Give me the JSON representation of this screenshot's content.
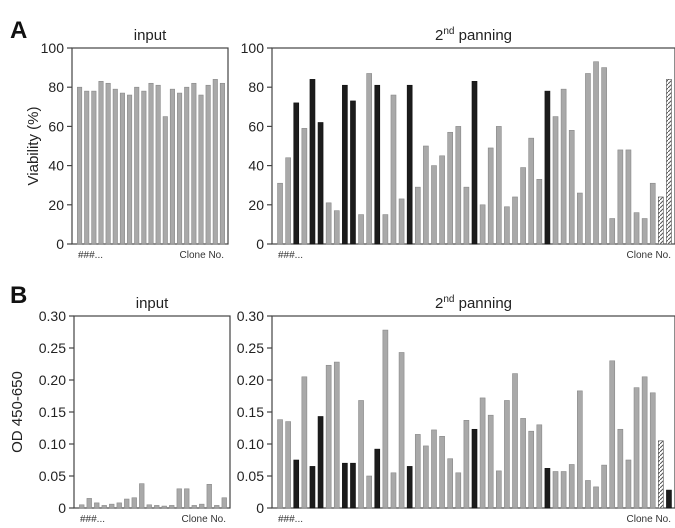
{
  "figure_labels": [
    "A",
    "B"
  ],
  "colors": {
    "gray": "#a9a9a9",
    "dark": "#1c1c1c",
    "hatch": "#555555"
  },
  "chart_data": [
    {
      "id": "A-input",
      "type": "bar",
      "title": "input",
      "ylabel": "Viability (%)",
      "ylim": [
        0,
        100
      ],
      "yticks": [
        "0",
        "20",
        "40",
        "60",
        "80",
        "100"
      ],
      "x_start_label": "###...",
      "x_end_label": "Clone No.",
      "values": [
        80,
        78,
        78,
        83,
        82,
        79,
        77,
        76,
        80,
        78,
        82,
        81,
        65,
        79,
        77,
        80,
        82,
        76,
        81,
        84,
        82
      ],
      "kinds": [
        "g",
        "g",
        "g",
        "g",
        "g",
        "g",
        "g",
        "g",
        "g",
        "g",
        "g",
        "g",
        "g",
        "g",
        "g",
        "g",
        "g",
        "g",
        "g",
        "g",
        "g"
      ]
    },
    {
      "id": "A-panning",
      "type": "bar",
      "title_main": "2",
      "title_sup": "nd",
      "title_rest": " panning",
      "ylim": [
        0,
        100
      ],
      "yticks": [
        "0",
        "20",
        "40",
        "60",
        "80",
        "100"
      ],
      "x_start_label": "###...",
      "x_end_label": "Clone No.",
      "values": [
        31,
        44,
        72,
        59,
        84,
        62,
        21,
        17,
        81,
        73,
        15,
        87,
        81,
        15,
        76,
        23,
        81,
        29,
        50,
        40,
        45,
        57,
        60,
        29,
        83,
        20,
        49,
        60,
        19,
        24,
        39,
        54,
        33,
        78,
        65,
        79,
        58,
        26,
        87,
        93,
        90,
        13,
        48,
        48,
        16,
        13,
        31,
        24,
        84
      ],
      "kinds": [
        "g",
        "g",
        "d",
        "g",
        "d",
        "d",
        "g",
        "g",
        "d",
        "d",
        "g",
        "g",
        "d",
        "g",
        "g",
        "g",
        "d",
        "g",
        "g",
        "g",
        "g",
        "g",
        "g",
        "g",
        "d",
        "g",
        "g",
        "g",
        "g",
        "g",
        "g",
        "g",
        "g",
        "d",
        "g",
        "g",
        "g",
        "g",
        "g",
        "g",
        "g",
        "g",
        "g",
        "g",
        "g",
        "g",
        "g",
        "h",
        "h"
      ]
    },
    {
      "id": "B-input",
      "type": "bar",
      "title": "input",
      "ylabel": "OD 450-650",
      "ylim": [
        0,
        0.3
      ],
      "yticks": [
        "0",
        "0.05",
        "0.10",
        "0.15",
        "0.20",
        "0.25",
        "0.30"
      ],
      "x_start_label": "###...",
      "x_end_label": "Clone No.",
      "values": [
        0.005,
        0.015,
        0.008,
        0.004,
        0.006,
        0.008,
        0.014,
        0.016,
        0.038,
        0.005,
        0.004,
        0.003,
        0.004,
        0.03,
        0.03,
        0.004,
        0.006,
        0.037,
        0.004,
        0.016
      ],
      "kinds": [
        "g",
        "g",
        "g",
        "g",
        "g",
        "g",
        "g",
        "g",
        "g",
        "g",
        "g",
        "g",
        "g",
        "g",
        "g",
        "g",
        "g",
        "g",
        "g",
        "g"
      ]
    },
    {
      "id": "B-panning",
      "type": "bar",
      "title_main": "2",
      "title_sup": "nd",
      "title_rest": " panning",
      "ylim": [
        0,
        0.3
      ],
      "yticks": [
        "0",
        "0.05",
        "0.10",
        "0.15",
        "0.20",
        "0.25",
        "0.30"
      ],
      "x_start_label": "###...",
      "x_end_label": "Clone No.",
      "values": [
        0.138,
        0.135,
        0.075,
        0.205,
        0.065,
        0.143,
        0.223,
        0.228,
        0.07,
        0.07,
        0.168,
        0.05,
        0.092,
        0.278,
        0.055,
        0.243,
        0.065,
        0.115,
        0.097,
        0.122,
        0.112,
        0.077,
        0.055,
        0.137,
        0.123,
        0.172,
        0.145,
        0.058,
        0.168,
        0.21,
        0.14,
        0.12,
        0.13,
        0.062,
        0.057,
        0.057,
        0.068,
        0.183,
        0.043,
        0.033,
        0.067,
        0.23,
        0.123,
        0.075,
        0.188,
        0.205,
        0.18,
        0.105,
        0.028
      ],
      "kinds": [
        "g",
        "g",
        "d",
        "g",
        "d",
        "d",
        "g",
        "g",
        "d",
        "d",
        "g",
        "g",
        "d",
        "g",
        "g",
        "g",
        "d",
        "g",
        "g",
        "g",
        "g",
        "g",
        "g",
        "g",
        "d",
        "g",
        "g",
        "g",
        "g",
        "g",
        "g",
        "g",
        "g",
        "d",
        "g",
        "g",
        "g",
        "g",
        "g",
        "g",
        "g",
        "g",
        "g",
        "g",
        "g",
        "g",
        "g",
        "h",
        "d"
      ]
    }
  ]
}
